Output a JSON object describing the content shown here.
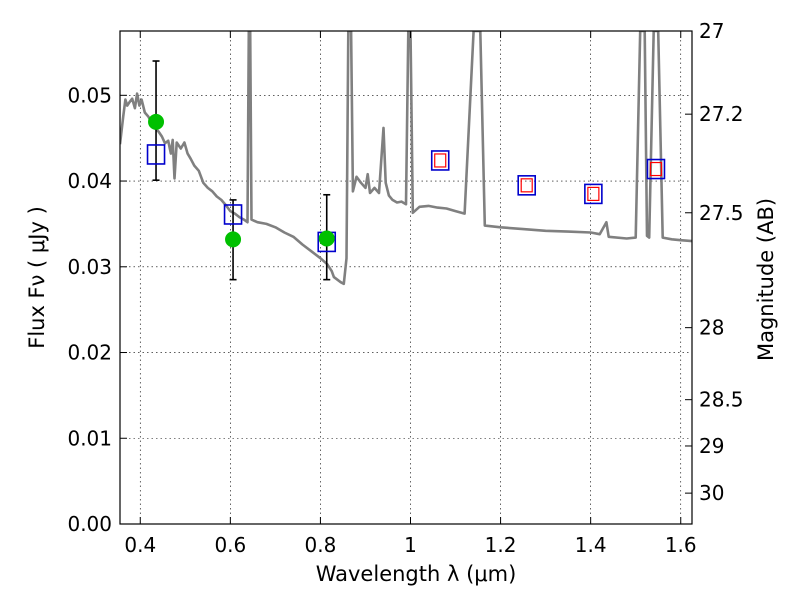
{
  "chart_data": {
    "type": "line",
    "title": "",
    "xlabel": "Wavelength  λ (μm)",
    "ylabel": "Flux  Fν  ( μJy )",
    "ylabel_right": "Magnitude (AB)",
    "xlim": [
      0.355,
      1.625
    ],
    "ylim": [
      0.0,
      0.0575
    ],
    "grid": true,
    "x_ticks": [
      {
        "value": 0.4,
        "label": "0.4"
      },
      {
        "value": 0.6,
        "label": "0.6"
      },
      {
        "value": 0.8,
        "label": "0.8"
      },
      {
        "value": 1.0,
        "label": "1"
      },
      {
        "value": 1.2,
        "label": "1.2"
      },
      {
        "value": 1.4,
        "label": "1.4"
      },
      {
        "value": 1.6,
        "label": "1.6"
      }
    ],
    "y_ticks": [
      {
        "value": 0.0,
        "label": "0.00"
      },
      {
        "value": 0.01,
        "label": "0.01"
      },
      {
        "value": 0.02,
        "label": "0.02"
      },
      {
        "value": 0.03,
        "label": "0.03"
      },
      {
        "value": 0.04,
        "label": "0.04"
      },
      {
        "value": 0.05,
        "label": "0.05"
      }
    ],
    "right_ticks": [
      {
        "flux": 0.0575,
        "label": "27"
      },
      {
        "flux": 0.0478,
        "label": "27.2"
      },
      {
        "flux": 0.0363,
        "label": "27.5"
      },
      {
        "flux": 0.0229,
        "label": "28"
      },
      {
        "flux": 0.0145,
        "label": "28.5"
      },
      {
        "flux": 0.0091,
        "label": "29"
      },
      {
        "flux": 0.0036,
        "label": "30"
      }
    ],
    "series": [
      {
        "kind": "model_spectrum",
        "color": "#808080",
        "points": [
          [
            0.355,
            0.0443
          ],
          [
            0.362,
            0.0475
          ],
          [
            0.367,
            0.0495
          ],
          [
            0.371,
            0.0488
          ],
          [
            0.376,
            0.0492
          ],
          [
            0.382,
            0.0496
          ],
          [
            0.388,
            0.0485
          ],
          [
            0.393,
            0.0502
          ],
          [
            0.398,
            0.0488
          ],
          [
            0.403,
            0.0495
          ],
          [
            0.41,
            0.048
          ],
          [
            0.418,
            0.0475
          ],
          [
            0.425,
            0.0468
          ],
          [
            0.432,
            0.0462
          ],
          [
            0.44,
            0.0458
          ],
          [
            0.448,
            0.0452
          ],
          [
            0.455,
            0.0444
          ],
          [
            0.462,
            0.0447
          ],
          [
            0.468,
            0.0432
          ],
          [
            0.472,
            0.0448
          ],
          [
            0.476,
            0.0403
          ],
          [
            0.481,
            0.0445
          ],
          [
            0.49,
            0.0438
          ],
          [
            0.498,
            0.0445
          ],
          [
            0.505,
            0.0432
          ],
          [
            0.512,
            0.0426
          ],
          [
            0.52,
            0.0418
          ],
          [
            0.53,
            0.0412
          ],
          [
            0.54,
            0.0398
          ],
          [
            0.55,
            0.0392
          ],
          [
            0.56,
            0.0388
          ],
          [
            0.57,
            0.0382
          ],
          [
            0.58,
            0.0378
          ],
          [
            0.59,
            0.0372
          ],
          [
            0.6,
            0.0365
          ],
          [
            0.61,
            0.0362
          ],
          [
            0.62,
            0.0358
          ],
          [
            0.63,
            0.0355
          ],
          [
            0.638,
            0.0352
          ],
          [
            0.641,
            0.0575
          ],
          [
            0.644,
            0.0575
          ],
          [
            0.647,
            0.0355
          ],
          [
            0.66,
            0.0352
          ],
          [
            0.68,
            0.035
          ],
          [
            0.7,
            0.0346
          ],
          [
            0.72,
            0.034
          ],
          [
            0.74,
            0.0335
          ],
          [
            0.76,
            0.0326
          ],
          [
            0.78,
            0.0318
          ],
          [
            0.8,
            0.031
          ],
          [
            0.815,
            0.0303
          ],
          [
            0.825,
            0.0295
          ],
          [
            0.83,
            0.0288
          ],
          [
            0.845,
            0.0282
          ],
          [
            0.852,
            0.028
          ],
          [
            0.858,
            0.031
          ],
          [
            0.862,
            0.0575
          ],
          [
            0.868,
            0.0575
          ],
          [
            0.872,
            0.0388
          ],
          [
            0.88,
            0.0405
          ],
          [
            0.89,
            0.0398
          ],
          [
            0.9,
            0.0392
          ],
          [
            0.905,
            0.0408
          ],
          [
            0.91,
            0.0386
          ],
          [
            0.92,
            0.0392
          ],
          [
            0.93,
            0.0386
          ],
          [
            0.94,
            0.0462
          ],
          [
            0.945,
            0.0398
          ],
          [
            0.952,
            0.0383
          ],
          [
            0.96,
            0.0378
          ],
          [
            0.97,
            0.0375
          ],
          [
            0.98,
            0.0376
          ],
          [
            0.99,
            0.0373
          ],
          [
            0.995,
            0.0575
          ],
          [
            1.0,
            0.0575
          ],
          [
            1.005,
            0.0363
          ],
          [
            1.02,
            0.037
          ],
          [
            1.04,
            0.0371
          ],
          [
            1.06,
            0.0369
          ],
          [
            1.08,
            0.0368
          ],
          [
            1.1,
            0.0365
          ],
          [
            1.12,
            0.0362
          ],
          [
            1.14,
            0.0575
          ],
          [
            1.155,
            0.0575
          ],
          [
            1.165,
            0.0348
          ],
          [
            1.2,
            0.0346
          ],
          [
            1.25,
            0.0344
          ],
          [
            1.3,
            0.0342
          ],
          [
            1.35,
            0.0341
          ],
          [
            1.4,
            0.034
          ],
          [
            1.42,
            0.0338
          ],
          [
            1.435,
            0.0352
          ],
          [
            1.44,
            0.0335
          ],
          [
            1.48,
            0.0333
          ],
          [
            1.5,
            0.0334
          ],
          [
            1.51,
            0.0575
          ],
          [
            1.52,
            0.0575
          ],
          [
            1.525,
            0.0336
          ],
          [
            1.53,
            0.0334
          ],
          [
            1.54,
            0.0575
          ],
          [
            1.55,
            0.0575
          ],
          [
            1.56,
            0.0334
          ],
          [
            1.58,
            0.0332
          ],
          [
            1.6,
            0.0331
          ],
          [
            1.625,
            0.033
          ]
        ]
      },
      {
        "kind": "observed_points",
        "marker": "circle",
        "color": "#00c000",
        "points": [
          {
            "x": 0.435,
            "y": 0.0469,
            "yerr_low": 0.0401,
            "yerr_high": 0.054
          },
          {
            "x": 0.606,
            "y": 0.0332,
            "yerr_low": 0.0285,
            "yerr_high": 0.0378
          },
          {
            "x": 0.814,
            "y": 0.0333,
            "yerr_low": 0.0285,
            "yerr_high": 0.0384
          }
        ]
      },
      {
        "kind": "model_photometry",
        "marker": "square",
        "color": "#0000cc",
        "points": [
          {
            "x": 0.435,
            "y": 0.0431
          },
          {
            "x": 0.606,
            "y": 0.0361
          },
          {
            "x": 0.814,
            "y": 0.0329
          },
          {
            "x": 1.066,
            "y": 0.0424
          },
          {
            "x": 1.258,
            "y": 0.0395
          },
          {
            "x": 1.406,
            "y": 0.0385
          },
          {
            "x": 1.545,
            "y": 0.0414
          }
        ]
      },
      {
        "kind": "model_photometry_inner",
        "marker": "square",
        "color": "#ff0000",
        "points": [
          {
            "x": 1.066,
            "y": 0.0424
          },
          {
            "x": 1.258,
            "y": 0.0395
          },
          {
            "x": 1.406,
            "y": 0.0385
          },
          {
            "x": 1.545,
            "y": 0.0414
          }
        ]
      }
    ]
  }
}
